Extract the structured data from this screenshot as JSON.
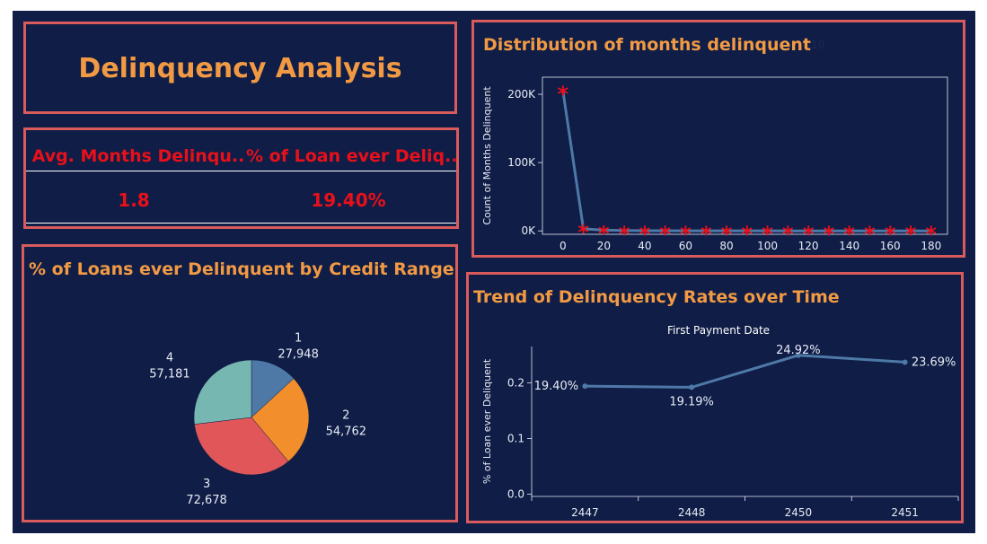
{
  "title": "Delinquency Analysis",
  "kpi": {
    "avg_label": "Avg. Months Delinqu..",
    "avg_value": "1.8",
    "pct_label": "% of Loan ever Deliq..",
    "pct_value": "19.40%"
  },
  "colors": {
    "background": "#0f1d47",
    "border": "#d95b5b",
    "title": "#f29a43",
    "kpi_text": "#e8101a",
    "line": "#4e79a7",
    "marker": "#e8101a"
  },
  "chart_data": [
    {
      "type": "pie",
      "title": "% of Loans ever Delinquent by Credit Range",
      "categories": [
        "1",
        "2",
        "3",
        "4"
      ],
      "values": [
        27948,
        54762,
        72678,
        57181
      ],
      "value_labels": [
        "27,948",
        "54,762",
        "72,678",
        "57,181"
      ],
      "colors": [
        "#4e79a7",
        "#f28e2b",
        "#e15759",
        "#76b7b2"
      ]
    },
    {
      "type": "line",
      "title": "Distribution of months delinquent",
      "annotation": "10",
      "ylabel": "Count of Months Delinquent",
      "x": [
        0,
        10,
        20,
        30,
        40,
        50,
        60,
        70,
        80,
        90,
        100,
        110,
        120,
        130,
        140,
        150,
        160,
        170,
        180
      ],
      "y": [
        205000,
        3000,
        1000,
        500,
        300,
        200,
        150,
        120,
        100,
        80,
        70,
        60,
        50,
        40,
        30,
        20,
        20,
        10,
        10
      ],
      "xticks": [
        0,
        20,
        40,
        60,
        80,
        100,
        120,
        140,
        160,
        180
      ],
      "xtick_labels": [
        "0",
        "20",
        "40",
        "60",
        "80",
        "100",
        "120",
        "140",
        "160",
        "180"
      ],
      "yticks": [
        0,
        100000,
        200000
      ],
      "ytick_labels": [
        "0K",
        "100K",
        "200K"
      ],
      "xlim": [
        -10,
        188
      ],
      "ylim": [
        -5000,
        225000
      ],
      "marker": "*"
    },
    {
      "type": "line",
      "title": "Trend of Delinquency Rates over Time",
      "subtitle": "First Payment Date",
      "ylabel": "% of Loan ever Deliquent",
      "categories": [
        "2447",
        "2448",
        "2450",
        "2451"
      ],
      "values": [
        0.194,
        0.1919,
        0.2492,
        0.2369
      ],
      "value_labels": [
        "19.40%",
        "19.19%",
        "24.92%",
        "23.69%"
      ],
      "yticks": [
        0.0,
        0.1,
        0.2
      ],
      "ytick_labels": [
        "0.0",
        "0.1",
        "0.2"
      ],
      "ylim": [
        -0.004,
        0.265
      ]
    }
  ]
}
